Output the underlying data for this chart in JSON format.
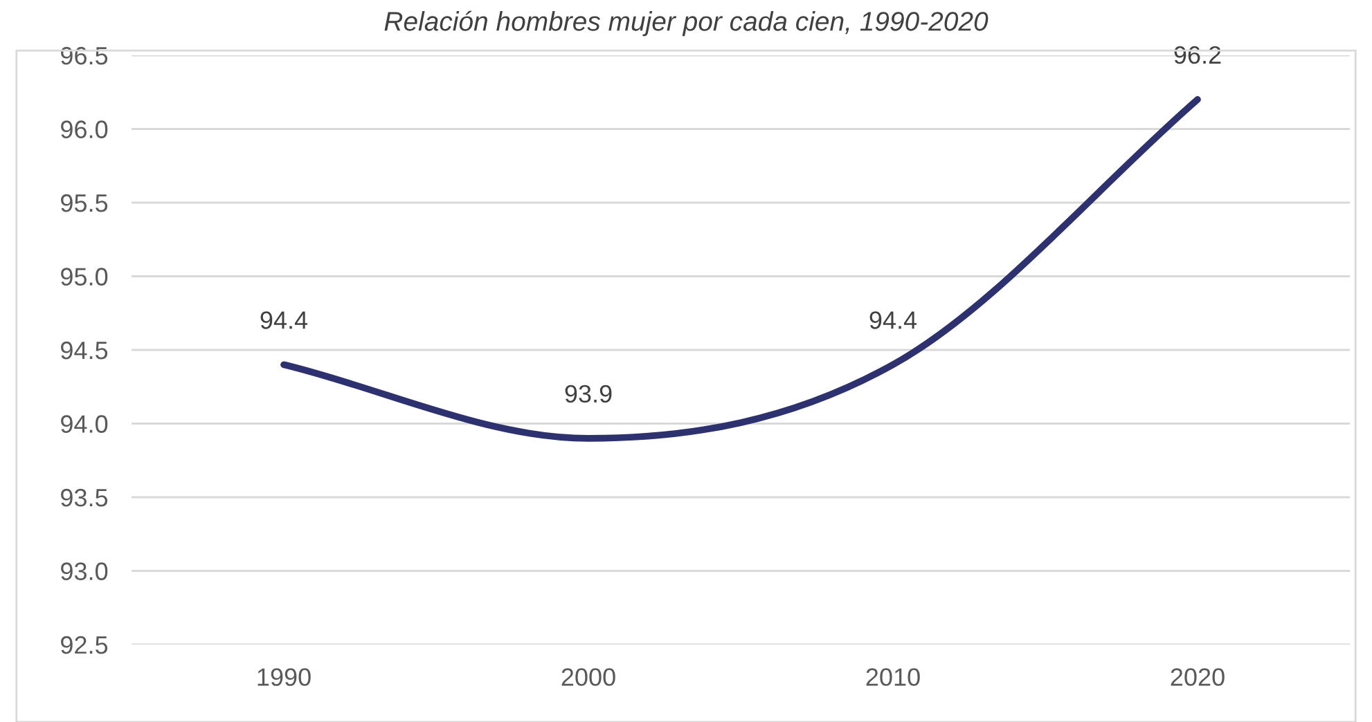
{
  "chart_data": {
    "type": "line",
    "title": "Relación hombres mujer por cada cien, 1990-2020",
    "categories": [
      "1990",
      "2000",
      "2010",
      "2020"
    ],
    "series": [
      {
        "color": "#2e3170",
        "values": [
          94.4,
          93.9,
          94.4,
          96.2
        ]
      }
    ],
    "ylim": [
      92.5,
      96.5
    ],
    "yticks": [
      {
        "value": 92.5,
        "label": "92.5"
      },
      {
        "value": 93.0,
        "label": "93.0"
      },
      {
        "value": 93.5,
        "label": "93.5"
      },
      {
        "value": 94.0,
        "label": "94.0"
      },
      {
        "value": 94.5,
        "label": "94.5"
      },
      {
        "value": 95.0,
        "label": "95.0"
      },
      {
        "value": 95.5,
        "label": "95.5"
      },
      {
        "value": 96.0,
        "label": "96.0"
      },
      {
        "value": 96.5,
        "label": "96.5"
      }
    ],
    "grid": "y",
    "marker": "none",
    "line_style": "solid",
    "data_labels": true
  }
}
